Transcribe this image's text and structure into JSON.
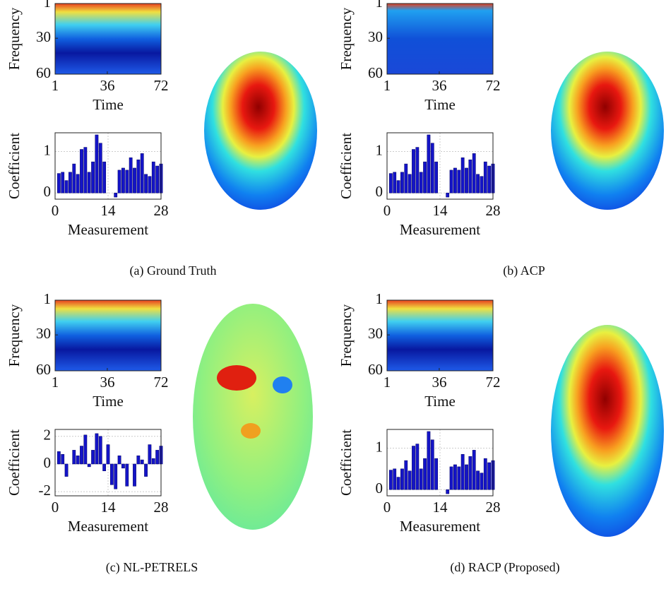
{
  "captions": [
    "(a) Ground Truth",
    "(b) ACP",
    "(c) NL-PETRELS",
    "(d) RACP (Proposed)"
  ],
  "chart_data": [
    {
      "type": "heatmap",
      "xlabel": "Time",
      "ylabel": "Frequency",
      "xlim": [
        1,
        72
      ],
      "ylim": [
        1,
        60
      ],
      "xticks": [
        1,
        36,
        72
      ],
      "yticks": [
        1,
        30,
        60
      ],
      "y_reversed": true
    },
    {
      "type": "bar",
      "xlabel": "Measurement",
      "ylabel": "Coefficient",
      "color": "#1414c8",
      "grid": true,
      "x": [
        1,
        2,
        3,
        4,
        5,
        6,
        7,
        8,
        9,
        10,
        11,
        12,
        13,
        14,
        15,
        16,
        17,
        18,
        19,
        20,
        21,
        22,
        23,
        24,
        25,
        26,
        27,
        28
      ],
      "values": [
        0.47,
        0.5,
        0.3,
        0.5,
        0.7,
        0.45,
        1.05,
        1.1,
        0.5,
        0.75,
        1.4,
        1.2,
        0.75,
        0,
        0,
        -0.1,
        0.55,
        0.6,
        0.55,
        0.85,
        0.6,
        0.8,
        0.95,
        0.45,
        0.4,
        0.75,
        0.65,
        0.7
      ],
      "xlim": [
        0,
        28
      ],
      "xticks": [
        0,
        14,
        28
      ],
      "ylim": [
        -0.15,
        1.45
      ],
      "yticks": [
        0,
        1
      ]
    },
    {
      "type": "heatmap",
      "xlabel": "Time",
      "ylabel": "Frequency",
      "xlim": [
        1,
        72
      ],
      "ylim": [
        1,
        60
      ],
      "xticks": [
        1,
        36,
        72
      ],
      "yticks": [
        1,
        30,
        60
      ],
      "y_reversed": true
    },
    {
      "type": "bar",
      "xlabel": "Measurement",
      "ylabel": "Coefficient",
      "color": "#1414c8",
      "grid": true,
      "x": [
        1,
        2,
        3,
        4,
        5,
        6,
        7,
        8,
        9,
        10,
        11,
        12,
        13,
        14,
        15,
        16,
        17,
        18,
        19,
        20,
        21,
        22,
        23,
        24,
        25,
        26,
        27,
        28
      ],
      "values": [
        0.47,
        0.5,
        0.3,
        0.5,
        0.7,
        0.45,
        1.05,
        1.1,
        0.5,
        0.75,
        1.4,
        1.2,
        0.75,
        0,
        0,
        -0.1,
        0.55,
        0.6,
        0.55,
        0.85,
        0.6,
        0.8,
        0.95,
        0.45,
        0.4,
        0.75,
        0.65,
        0.7
      ],
      "xlim": [
        0,
        28
      ],
      "xticks": [
        0,
        14,
        28
      ],
      "ylim": [
        -0.15,
        1.45
      ],
      "yticks": [
        0,
        1
      ]
    },
    {
      "type": "heatmap",
      "xlabel": "Time",
      "ylabel": "Frequency",
      "xlim": [
        1,
        72
      ],
      "ylim": [
        1,
        60
      ],
      "xticks": [
        1,
        36,
        72
      ],
      "yticks": [
        1,
        30,
        60
      ],
      "y_reversed": true
    },
    {
      "type": "bar",
      "xlabel": "Measurement",
      "ylabel": "Coefficient",
      "color": "#1414c8",
      "grid": true,
      "x": [
        1,
        2,
        3,
        4,
        5,
        6,
        7,
        8,
        9,
        10,
        11,
        12,
        13,
        14,
        15,
        16,
        17,
        18,
        19,
        20,
        21,
        22,
        23,
        24,
        25,
        26,
        27,
        28
      ],
      "values": [
        0.9,
        0.7,
        -0.9,
        0,
        1.0,
        0.6,
        1.3,
        2.1,
        -0.2,
        1.0,
        2.2,
        2.0,
        -0.5,
        1.4,
        -1.5,
        -1.8,
        0.6,
        -0.3,
        -1.6,
        0,
        -1.6,
        0.6,
        0.3,
        -0.9,
        1.4,
        0.4,
        1.0,
        1.3
      ],
      "xlim": [
        0,
        28
      ],
      "xticks": [
        0,
        14,
        28
      ],
      "ylim": [
        -2.3,
        2.5
      ],
      "yticks": [
        -2,
        0,
        2
      ]
    },
    {
      "type": "heatmap",
      "xlabel": "Time",
      "ylabel": "Frequency",
      "xlim": [
        1,
        72
      ],
      "ylim": [
        1,
        60
      ],
      "xticks": [
        1,
        36,
        72
      ],
      "yticks": [
        1,
        30,
        60
      ],
      "y_reversed": true
    },
    {
      "type": "bar",
      "xlabel": "Measurement",
      "ylabel": "Coefficient",
      "color": "#1414c8",
      "grid": true,
      "x": [
        1,
        2,
        3,
        4,
        5,
        6,
        7,
        8,
        9,
        10,
        11,
        12,
        13,
        14,
        15,
        16,
        17,
        18,
        19,
        20,
        21,
        22,
        23,
        24,
        25,
        26,
        27,
        28
      ],
      "values": [
        0.47,
        0.5,
        0.3,
        0.5,
        0.7,
        0.45,
        1.05,
        1.1,
        0.5,
        0.75,
        1.4,
        1.2,
        0.75,
        0,
        0,
        -0.1,
        0.55,
        0.6,
        0.55,
        0.85,
        0.6,
        0.8,
        0.95,
        0.45,
        0.4,
        0.75,
        0.65,
        0.7
      ],
      "xlim": [
        0,
        28
      ],
      "xticks": [
        0,
        14,
        28
      ],
      "ylim": [
        -0.15,
        1.45
      ],
      "yticks": [
        0,
        1
      ]
    }
  ]
}
